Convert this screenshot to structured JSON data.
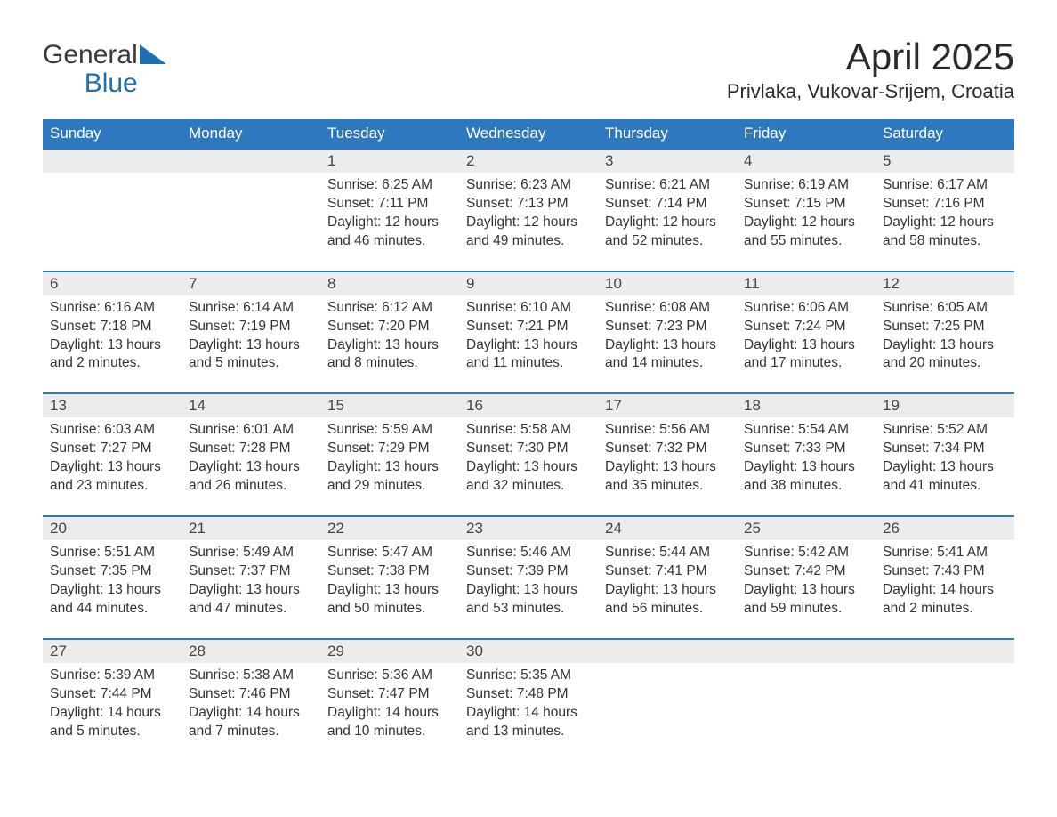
{
  "brand": {
    "line1": "General",
    "line2": "Blue"
  },
  "colors": {
    "header_bg": "#2e78bf",
    "header_text": "#ffffff",
    "rule": "#2e78bf",
    "daybar_bg": "#ececec",
    "text": "#333333",
    "logo_gray": "#3a3a3a",
    "logo_blue": "#1f6fb2",
    "page_bg": "#ffffff"
  },
  "title": "April 2025",
  "location": "Privlaka, Vukovar-Srijem, Croatia",
  "weekdays": [
    "Sunday",
    "Monday",
    "Tuesday",
    "Wednesday",
    "Thursday",
    "Friday",
    "Saturday"
  ],
  "labels": {
    "sunrise": "Sunrise:",
    "sunset": "Sunset:",
    "daylight": "Daylight:"
  },
  "weeks": [
    [
      null,
      null,
      {
        "d": "1",
        "sunrise": "6:25 AM",
        "sunset": "7:11 PM",
        "daylight": "12 hours and 46 minutes."
      },
      {
        "d": "2",
        "sunrise": "6:23 AM",
        "sunset": "7:13 PM",
        "daylight": "12 hours and 49 minutes."
      },
      {
        "d": "3",
        "sunrise": "6:21 AM",
        "sunset": "7:14 PM",
        "daylight": "12 hours and 52 minutes."
      },
      {
        "d": "4",
        "sunrise": "6:19 AM",
        "sunset": "7:15 PM",
        "daylight": "12 hours and 55 minutes."
      },
      {
        "d": "5",
        "sunrise": "6:17 AM",
        "sunset": "7:16 PM",
        "daylight": "12 hours and 58 minutes."
      }
    ],
    [
      {
        "d": "6",
        "sunrise": "6:16 AM",
        "sunset": "7:18 PM",
        "daylight": "13 hours and 2 minutes."
      },
      {
        "d": "7",
        "sunrise": "6:14 AM",
        "sunset": "7:19 PM",
        "daylight": "13 hours and 5 minutes."
      },
      {
        "d": "8",
        "sunrise": "6:12 AM",
        "sunset": "7:20 PM",
        "daylight": "13 hours and 8 minutes."
      },
      {
        "d": "9",
        "sunrise": "6:10 AM",
        "sunset": "7:21 PM",
        "daylight": "13 hours and 11 minutes."
      },
      {
        "d": "10",
        "sunrise": "6:08 AM",
        "sunset": "7:23 PM",
        "daylight": "13 hours and 14 minutes."
      },
      {
        "d": "11",
        "sunrise": "6:06 AM",
        "sunset": "7:24 PM",
        "daylight": "13 hours and 17 minutes."
      },
      {
        "d": "12",
        "sunrise": "6:05 AM",
        "sunset": "7:25 PM",
        "daylight": "13 hours and 20 minutes."
      }
    ],
    [
      {
        "d": "13",
        "sunrise": "6:03 AM",
        "sunset": "7:27 PM",
        "daylight": "13 hours and 23 minutes."
      },
      {
        "d": "14",
        "sunrise": "6:01 AM",
        "sunset": "7:28 PM",
        "daylight": "13 hours and 26 minutes."
      },
      {
        "d": "15",
        "sunrise": "5:59 AM",
        "sunset": "7:29 PM",
        "daylight": "13 hours and 29 minutes."
      },
      {
        "d": "16",
        "sunrise": "5:58 AM",
        "sunset": "7:30 PM",
        "daylight": "13 hours and 32 minutes."
      },
      {
        "d": "17",
        "sunrise": "5:56 AM",
        "sunset": "7:32 PM",
        "daylight": "13 hours and 35 minutes."
      },
      {
        "d": "18",
        "sunrise": "5:54 AM",
        "sunset": "7:33 PM",
        "daylight": "13 hours and 38 minutes."
      },
      {
        "d": "19",
        "sunrise": "5:52 AM",
        "sunset": "7:34 PM",
        "daylight": "13 hours and 41 minutes."
      }
    ],
    [
      {
        "d": "20",
        "sunrise": "5:51 AM",
        "sunset": "7:35 PM",
        "daylight": "13 hours and 44 minutes."
      },
      {
        "d": "21",
        "sunrise": "5:49 AM",
        "sunset": "7:37 PM",
        "daylight": "13 hours and 47 minutes."
      },
      {
        "d": "22",
        "sunrise": "5:47 AM",
        "sunset": "7:38 PM",
        "daylight": "13 hours and 50 minutes."
      },
      {
        "d": "23",
        "sunrise": "5:46 AM",
        "sunset": "7:39 PM",
        "daylight": "13 hours and 53 minutes."
      },
      {
        "d": "24",
        "sunrise": "5:44 AM",
        "sunset": "7:41 PM",
        "daylight": "13 hours and 56 minutes."
      },
      {
        "d": "25",
        "sunrise": "5:42 AM",
        "sunset": "7:42 PM",
        "daylight": "13 hours and 59 minutes."
      },
      {
        "d": "26",
        "sunrise": "5:41 AM",
        "sunset": "7:43 PM",
        "daylight": "14 hours and 2 minutes."
      }
    ],
    [
      {
        "d": "27",
        "sunrise": "5:39 AM",
        "sunset": "7:44 PM",
        "daylight": "14 hours and 5 minutes."
      },
      {
        "d": "28",
        "sunrise": "5:38 AM",
        "sunset": "7:46 PM",
        "daylight": "14 hours and 7 minutes."
      },
      {
        "d": "29",
        "sunrise": "5:36 AM",
        "sunset": "7:47 PM",
        "daylight": "14 hours and 10 minutes."
      },
      {
        "d": "30",
        "sunrise": "5:35 AM",
        "sunset": "7:48 PM",
        "daylight": "14 hours and 13 minutes."
      },
      null,
      null,
      null
    ]
  ]
}
